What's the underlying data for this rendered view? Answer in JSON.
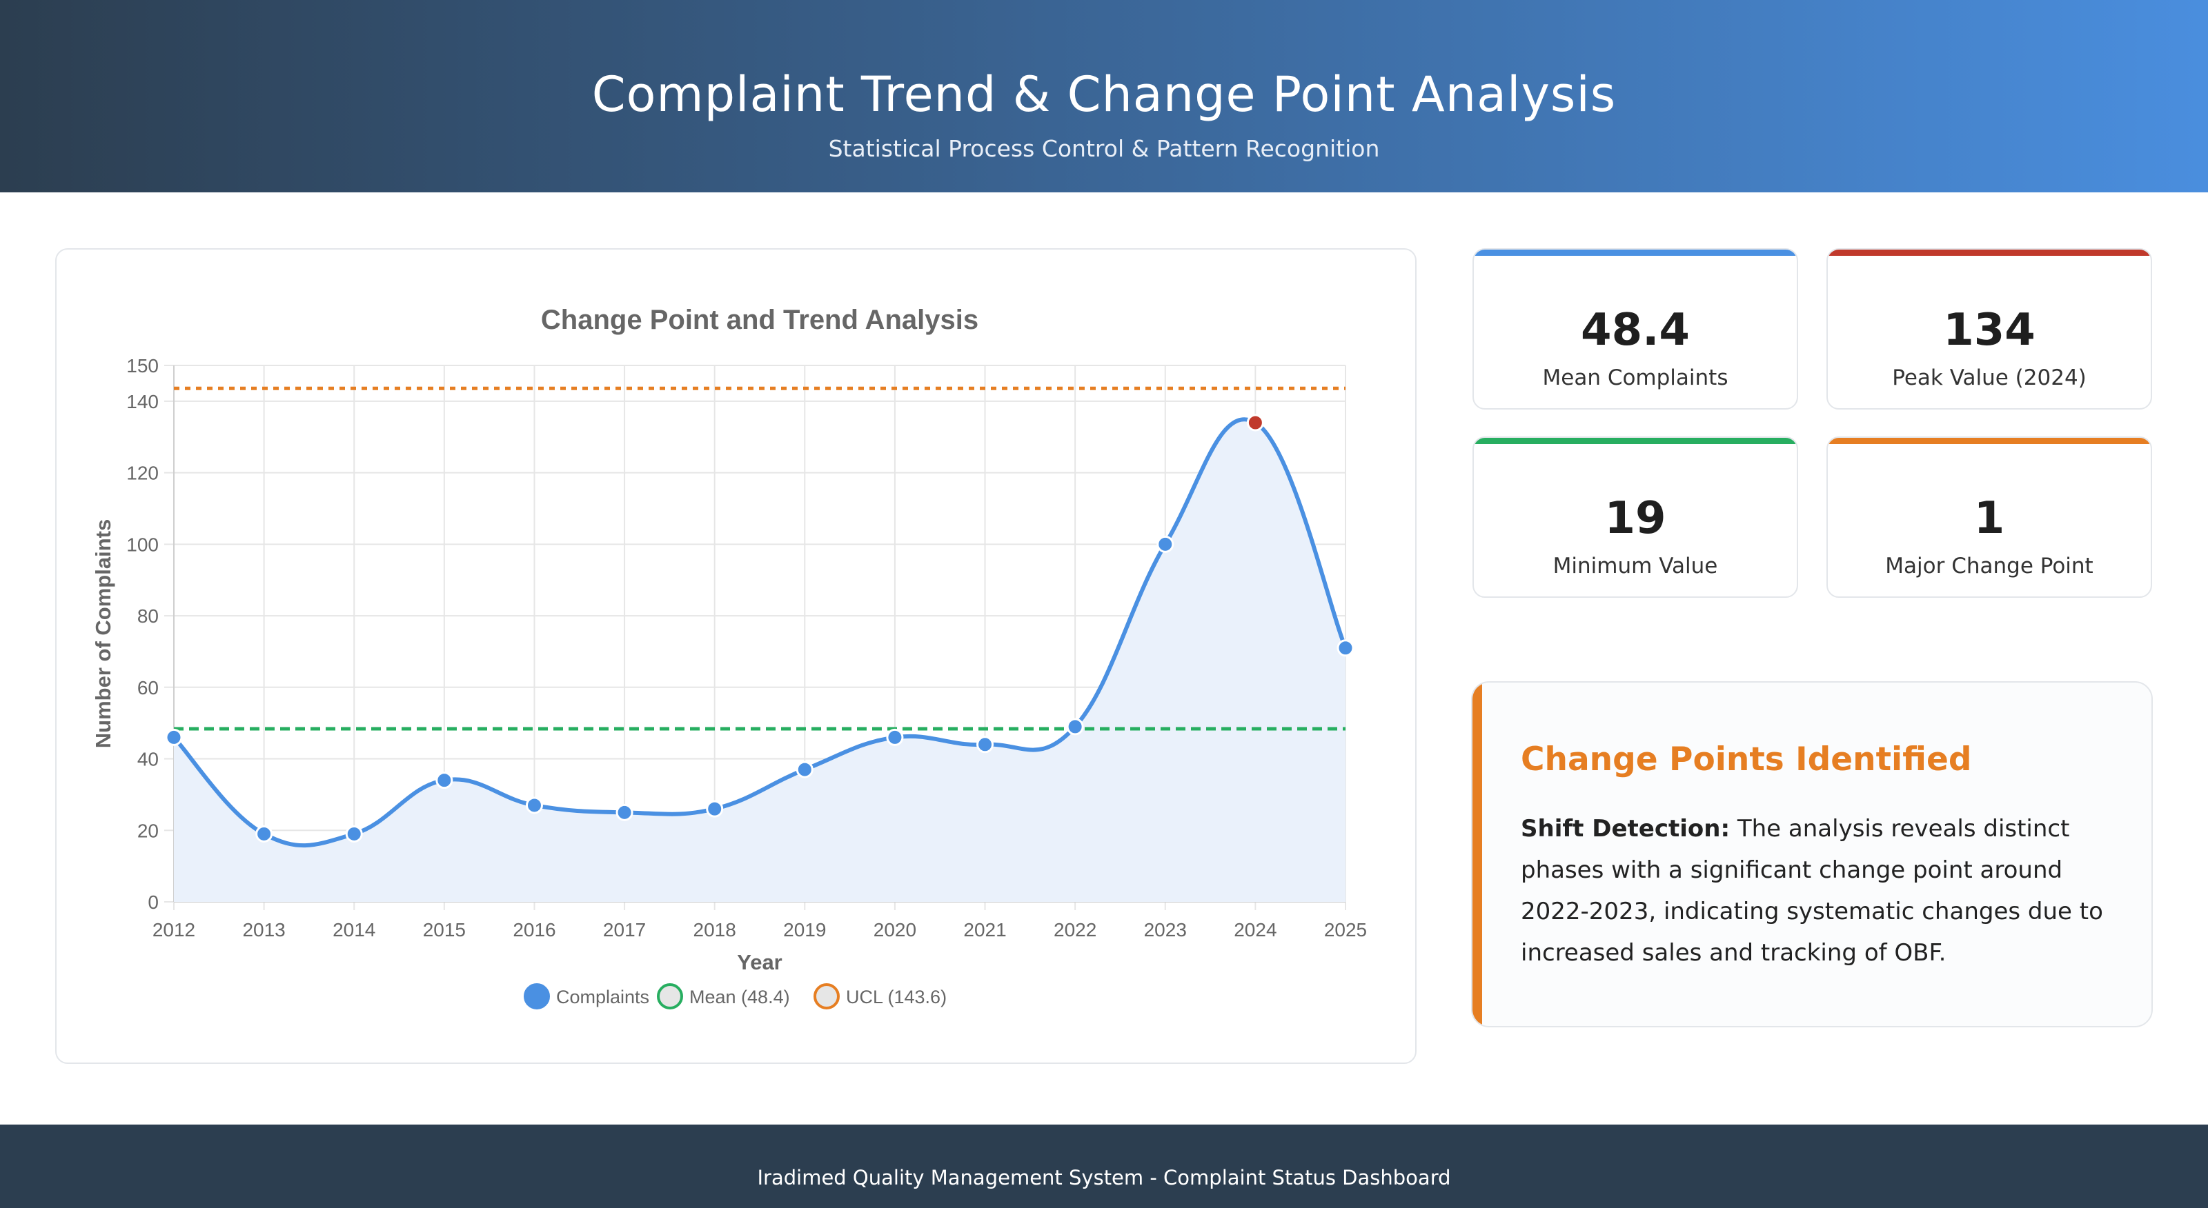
{
  "header": {
    "title": "Complaint Trend & Change Point Analysis",
    "subtitle": "Statistical Process Control & Pattern Recognition"
  },
  "stats": [
    {
      "value": "48.4",
      "label": "Mean Complaints",
      "color": "#4a90e2"
    },
    {
      "value": "134",
      "label": "Peak Value (2024)",
      "color": "#c0392b"
    },
    {
      "value": "19",
      "label": "Minimum Value",
      "color": "#27ae60"
    },
    {
      "value": "1",
      "label": "Major Change Point",
      "color": "#e67e22"
    }
  ],
  "info": {
    "heading": "Change Points Identified",
    "lead": "Shift Detection:",
    "text": "The analysis reveals distinct phases with a significant change point around 2022-2023, indicating systematic changes due to increased sales and tracking of OBF."
  },
  "footer": {
    "text": "Iradimed Quality Management System - Complaint Status Dashboard"
  },
  "chart_data": {
    "type": "line",
    "title": "Change Point and Trend Analysis",
    "xlabel": "Year",
    "ylabel": "Number of Complaints",
    "categories": [
      "2012",
      "2013",
      "2014",
      "2015",
      "2016",
      "2017",
      "2018",
      "2019",
      "2020",
      "2021",
      "2022",
      "2023",
      "2024",
      "2025"
    ],
    "series": [
      {
        "name": "Complaints",
        "values": [
          46,
          19,
          19,
          34,
          27,
          25,
          26,
          37,
          46,
          44,
          49,
          100,
          134,
          71
        ],
        "color": "#4a90e2",
        "fill": "#eaf1fb",
        "highlight_index": 12,
        "highlight_color": "#c0392b"
      }
    ],
    "reference_lines": [
      {
        "name": "Mean (48.4)",
        "value": 48.4,
        "color": "#27ae60",
        "style": "dashed"
      },
      {
        "name": "UCL (143.6)",
        "value": 143.6,
        "color": "#e67e22",
        "style": "dotted"
      }
    ],
    "ylim": [
      0,
      150
    ],
    "yticks": [
      0,
      20,
      40,
      60,
      80,
      100,
      120,
      140,
      150
    ],
    "grid": true,
    "legend_position": "bottom"
  }
}
